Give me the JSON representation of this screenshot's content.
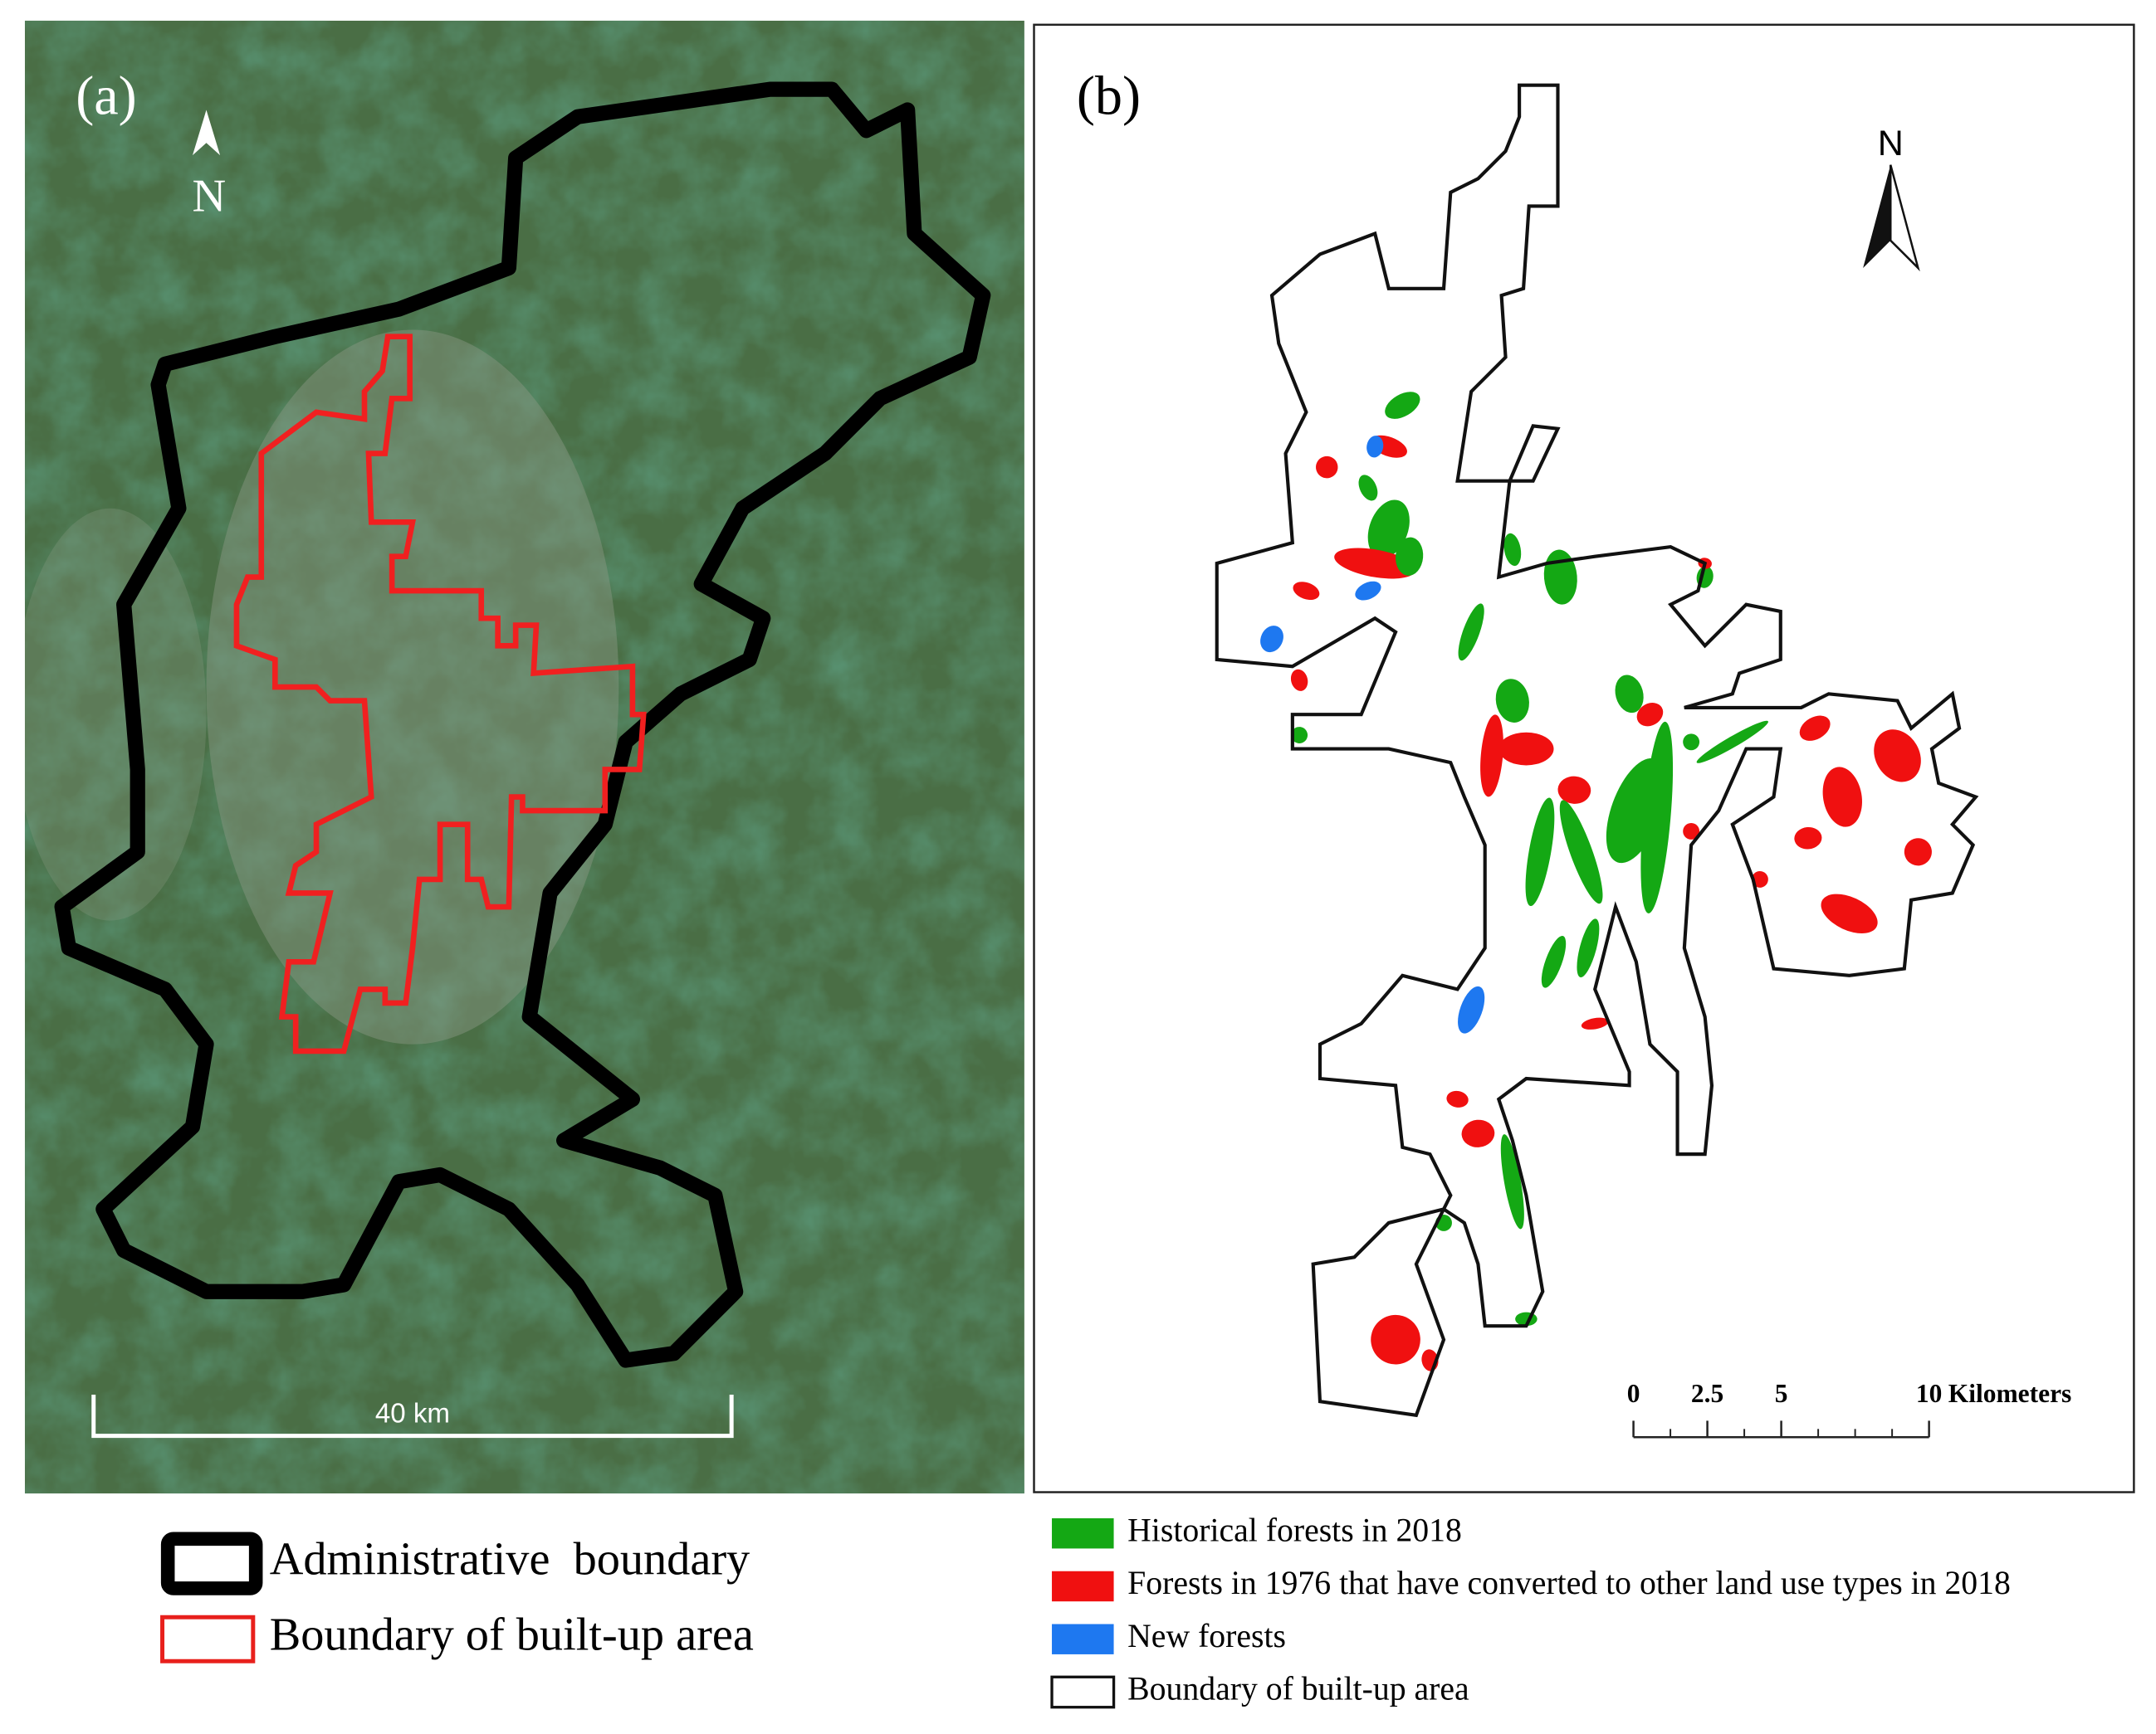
{
  "panel_a": {
    "label": "(a)",
    "north": "N",
    "scale_bar": "40 km",
    "legend": [
      {
        "label": "Administrative  boundary",
        "color": "#000000"
      },
      {
        "label": "Boundary of built-up area",
        "color": "#e8201c"
      }
    ]
  },
  "panel_b": {
    "label": "(b)",
    "north": "N",
    "scale_bar": {
      "ticks": [
        0,
        2.5,
        5,
        10
      ],
      "unit": "Kilometers"
    },
    "legend": [
      {
        "label": "Historical forests in 2018",
        "color": "#14a814"
      },
      {
        "label": "Forests in 1976 that have converted to other land use types in 2018",
        "color": "#f01010"
      },
      {
        "label": "New forests",
        "color": "#1e78f0"
      },
      {
        "label": "Boundary of built-up area",
        "color": "#ffffff"
      }
    ]
  }
}
